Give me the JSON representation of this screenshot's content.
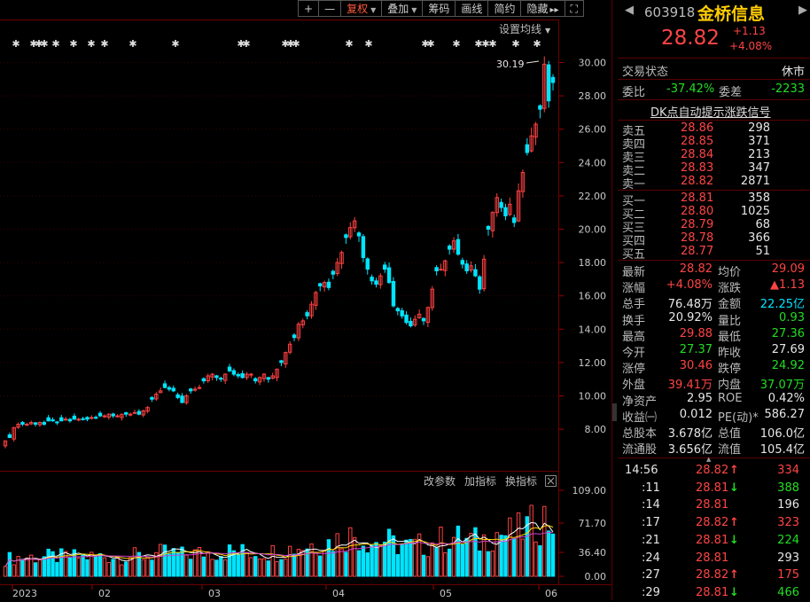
{
  "toolbar": {
    "plus": "+",
    "minus": "—",
    "restore_rights": "复权",
    "overlay": "叠加",
    "chips": "筹码",
    "draw": "画线",
    "brief": "简约",
    "hide": "隐藏",
    "more_arrows": "▸▸",
    "fullscreen": "⛶"
  },
  "chart": {
    "ma_settings": "设置均线",
    "high_label": "30.19",
    "sub_params": "改参数",
    "sub_add": "加指标",
    "sub_switch": "换指标",
    "x_labels": [
      "2023",
      "02",
      "03",
      "04",
      "05",
      "06"
    ],
    "price_ticks": [
      "30.00",
      "28.00",
      "26.00",
      "24.00",
      "22.00",
      "20.00",
      "18.00",
      "16.00",
      "14.00",
      "12.00",
      "10.00",
      "8.00"
    ],
    "vol_ticks": [
      "109.00",
      "71.70",
      "36.40",
      "0.00"
    ],
    "up_color": "#ff4040",
    "down_color": "#00e5ff"
  },
  "quote": {
    "code": "603918",
    "name": "金桥信息",
    "price": "28.82",
    "change": "+1.13",
    "change_pct": "+4.08%",
    "status_label": "交易状态",
    "status_value": "休市",
    "ratio_label": "委比",
    "ratio_value": "-37.42%",
    "diff_label": "委差",
    "diff_value": "-2233",
    "signal_link": "DK点自动提示涨跌信号"
  },
  "asks": [
    {
      "label": "卖五",
      "price": "28.86",
      "vol": "298"
    },
    {
      "label": "卖四",
      "price": "28.85",
      "vol": "371"
    },
    {
      "label": "卖三",
      "price": "28.84",
      "vol": "213"
    },
    {
      "label": "卖二",
      "price": "28.83",
      "vol": "347"
    },
    {
      "label": "卖一",
      "price": "28.82",
      "vol": "2871"
    }
  ],
  "bids": [
    {
      "label": "买一",
      "price": "28.81",
      "vol": "358"
    },
    {
      "label": "买二",
      "price": "28.80",
      "vol": "1025"
    },
    {
      "label": "买三",
      "price": "28.79",
      "vol": "68"
    },
    {
      "label": "买四",
      "price": "28.78",
      "vol": "366"
    },
    {
      "label": "买五",
      "price": "28.77",
      "vol": "51"
    }
  ],
  "stats": [
    {
      "l1": "最新",
      "v1": "28.82",
      "c1": "red",
      "l2": "均价",
      "v2": "29.09",
      "c2": "red"
    },
    {
      "l1": "涨幅",
      "v1": "+4.08%",
      "c1": "red",
      "l2": "涨跌",
      "v2": "▲1.13",
      "c2": "red"
    },
    {
      "l1": "总手",
      "v1": "76.48万",
      "c1": "white",
      "l2": "金额",
      "v2": "22.25亿",
      "c2": "cyan"
    },
    {
      "l1": "换手",
      "v1": "20.92%",
      "c1": "white",
      "l2": "量比",
      "v2": "0.93",
      "c2": "green"
    },
    {
      "l1": "最高",
      "v1": "29.88",
      "c1": "red",
      "l2": "最低",
      "v2": "27.36",
      "c2": "green"
    },
    {
      "l1": "今开",
      "v1": "27.37",
      "c1": "green",
      "l2": "昨收",
      "v2": "27.69",
      "c2": "white"
    },
    {
      "l1": "涨停",
      "v1": "30.46",
      "c1": "red",
      "l2": "跌停",
      "v2": "24.92",
      "c2": "green"
    },
    {
      "l1": "外盘",
      "v1": "39.41万",
      "c1": "red",
      "l2": "内盘",
      "v2": "37.07万",
      "c2": "green"
    },
    {
      "l1": "净资产",
      "v1": "2.95",
      "c1": "white",
      "l2": "ROE",
      "v2": "0.42%",
      "c2": "white"
    },
    {
      "l1": "收益㈠",
      "v1": "0.012",
      "c1": "white",
      "l2": "PE(动)*",
      "v2": "586.27",
      "c2": "white"
    },
    {
      "l1": "总股本",
      "v1": "3.678亿",
      "c1": "white",
      "l2": "总值",
      "v2": "106.0亿",
      "c2": "white"
    },
    {
      "l1": "流通股",
      "v1": "3.656亿",
      "c1": "white",
      "l2": "流值",
      "v2": "105.4亿",
      "c2": "white"
    }
  ],
  "ticks": [
    {
      "time": "14:56",
      "price": "28.82",
      "dir": "up",
      "vol": "334"
    },
    {
      "time": ":11",
      "price": "28.81",
      "dir": "down",
      "vol": "388"
    },
    {
      "time": ":14",
      "price": "28.81",
      "dir": "",
      "vol": "196"
    },
    {
      "time": ":17",
      "price": "28.82",
      "dir": "up",
      "vol": "323"
    },
    {
      "time": ":21",
      "price": "28.81",
      "dir": "down",
      "vol": "224"
    },
    {
      "time": ":24",
      "price": "28.81",
      "dir": "",
      "vol": "293"
    },
    {
      "time": ":27",
      "price": "28.82",
      "dir": "up",
      "vol": "175"
    },
    {
      "time": ":29",
      "price": "28.81",
      "dir": "down",
      "vol": "466"
    }
  ]
}
